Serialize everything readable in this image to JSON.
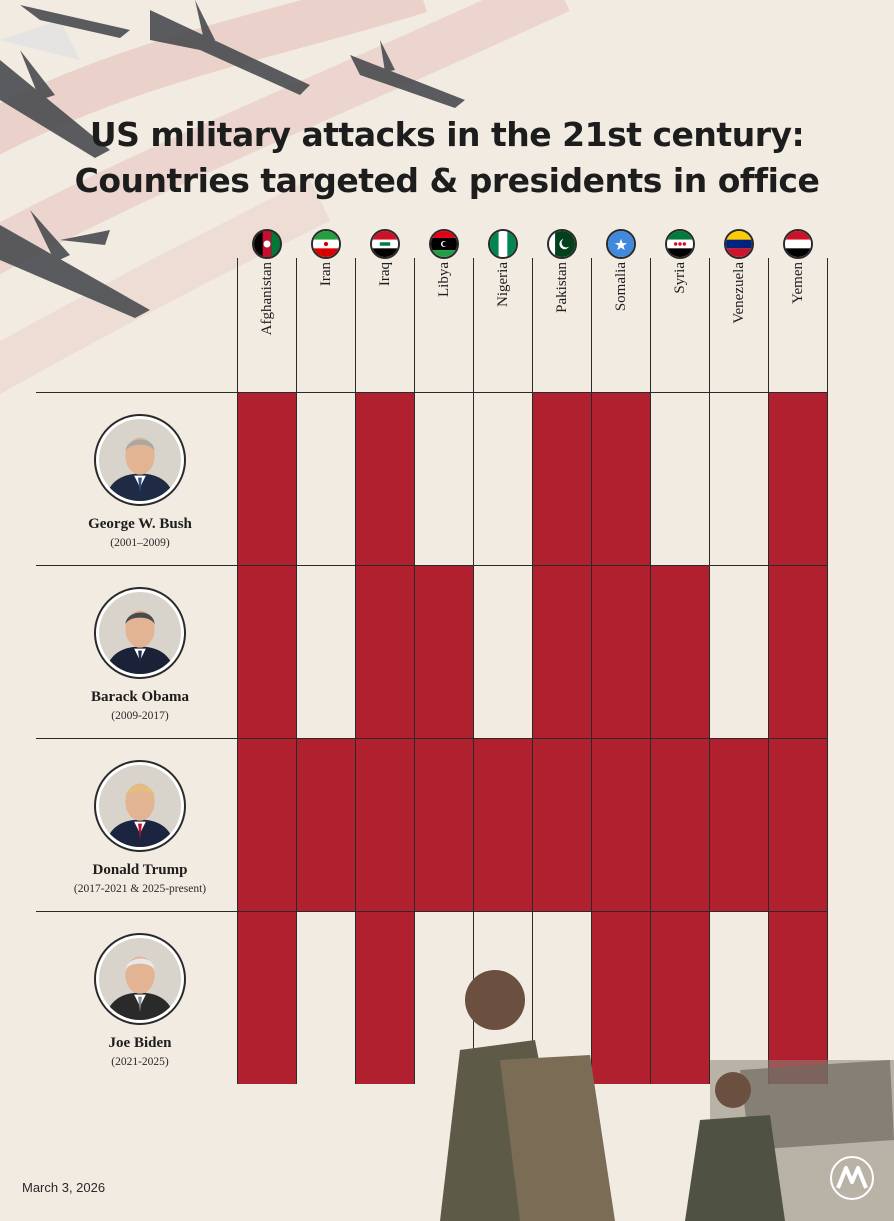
{
  "title_line1": "US military attacks in the 21st century:",
  "title_line2": "Countries targeted & presidents in office",
  "date": "March 3, 2026",
  "logo_icon": "aa-logo-icon",
  "colors": {
    "attack": "#b0202e",
    "background": "#f1ebe1",
    "grid": "#2a2a2a"
  },
  "countries": [
    "Afghanistan",
    "Iran",
    "Iraq",
    "Libya",
    "Nigeria",
    "Pakistan",
    "Somalia",
    "Syria",
    "Venezuela",
    "Yemen"
  ],
  "presidents": [
    {
      "name": "George W. Bush",
      "years": "(2001–2009)"
    },
    {
      "name": "Barack Obama",
      "years": "(2009-2017)"
    },
    {
      "name": "Donald Trump",
      "years": "(2017-2021 & 2025-present)"
    },
    {
      "name": "Joe Biden",
      "years": "(2021-2025)"
    }
  ],
  "chart_data": {
    "type": "table",
    "columns": [
      "Afghanistan",
      "Iran",
      "Iraq",
      "Libya",
      "Nigeria",
      "Pakistan",
      "Somalia",
      "Syria",
      "Venezuela",
      "Yemen"
    ],
    "rows": [
      "George W. Bush",
      "Barack Obama",
      "Donald Trump",
      "Joe Biden"
    ],
    "attacked": [
      [
        1,
        0,
        1,
        0,
        0,
        1,
        1,
        0,
        0,
        1
      ],
      [
        1,
        0,
        1,
        1,
        0,
        1,
        1,
        1,
        0,
        1
      ],
      [
        1,
        1,
        1,
        1,
        1,
        1,
        1,
        1,
        1,
        1
      ],
      [
        1,
        0,
        1,
        0,
        0,
        0,
        1,
        1,
        0,
        1
      ]
    ]
  }
}
